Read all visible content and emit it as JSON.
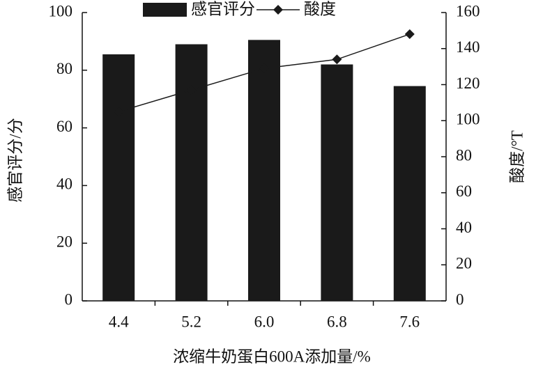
{
  "chart_data": {
    "type": "bar",
    "categories": [
      "4.4",
      "5.2",
      "6.0",
      "6.8",
      "7.6"
    ],
    "x_label": "浓缩牛奶蛋白600A添加量/%",
    "y_label": "感官评分/分",
    "y2_label": "酸度/°T",
    "series": [
      {
        "name": "感官评分",
        "type": "bar",
        "color": "#1a1a1a",
        "values": [
          85.5,
          89,
          90.5,
          82,
          74.5
        ]
      },
      {
        "name": "酸度",
        "type": "line",
        "axis": "y2",
        "color": "#1a1a1a",
        "values": [
          105,
          117,
          129,
          134,
          148
        ]
      }
    ],
    "ylim": [
      0,
      100
    ],
    "yticks": [
      0,
      20,
      40,
      60,
      80,
      100
    ],
    "y2lim": [
      0,
      160
    ],
    "y2ticks": [
      0,
      20,
      40,
      60,
      80,
      100,
      120,
      140,
      160
    ],
    "grid": false
  }
}
